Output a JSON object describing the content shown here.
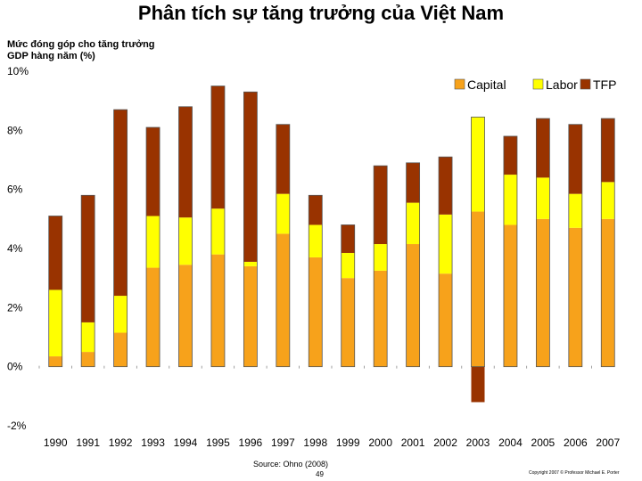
{
  "title": "Phân tích sự tăng trưởng của Việt Nam",
  "ylabel": "Mức đóng góp cho tăng trưởng GDP hàng năm (%)",
  "source": "Source: Ohno (2008)",
  "page_number": "49",
  "copyright": "Copyright 2007 © Professor Michael E. Porter",
  "chart_data": {
    "type": "bar",
    "stacked": true,
    "categories": [
      "1990",
      "1991",
      "1992",
      "1993",
      "1994",
      "1995",
      "1996",
      "1997",
      "1998",
      "1999",
      "2000",
      "2001",
      "2002",
      "2003",
      "2004",
      "2005",
      "2006",
      "2007"
    ],
    "series": [
      {
        "name": "Capital",
        "color": "#f7a21b",
        "values": [
          0.35,
          0.5,
          1.15,
          3.35,
          3.45,
          3.8,
          3.4,
          4.5,
          3.7,
          3.0,
          3.25,
          4.15,
          3.15,
          5.25,
          4.8,
          5.0,
          4.7,
          5.0
        ]
      },
      {
        "name": "Labor",
        "color": "#ffff00",
        "values": [
          2.25,
          1.0,
          1.25,
          1.75,
          1.6,
          1.55,
          0.15,
          1.35,
          1.1,
          0.85,
          0.9,
          1.4,
          2.0,
          3.2,
          1.7,
          1.4,
          1.15,
          1.25
        ]
      },
      {
        "name": "TFP",
        "color": "#993300",
        "values": [
          2.5,
          4.3,
          6.3,
          3.0,
          3.75,
          4.15,
          5.75,
          2.35,
          1.0,
          0.95,
          2.65,
          1.35,
          1.95,
          -1.2,
          1.3,
          2.0,
          2.35,
          2.15
        ]
      }
    ],
    "yticks": [
      "10%",
      "8%",
      "6%",
      "4%",
      "2%",
      "0%",
      "-2%"
    ],
    "ylim": [
      -2,
      10
    ],
    "legend_position": "top-right",
    "grid": false
  }
}
